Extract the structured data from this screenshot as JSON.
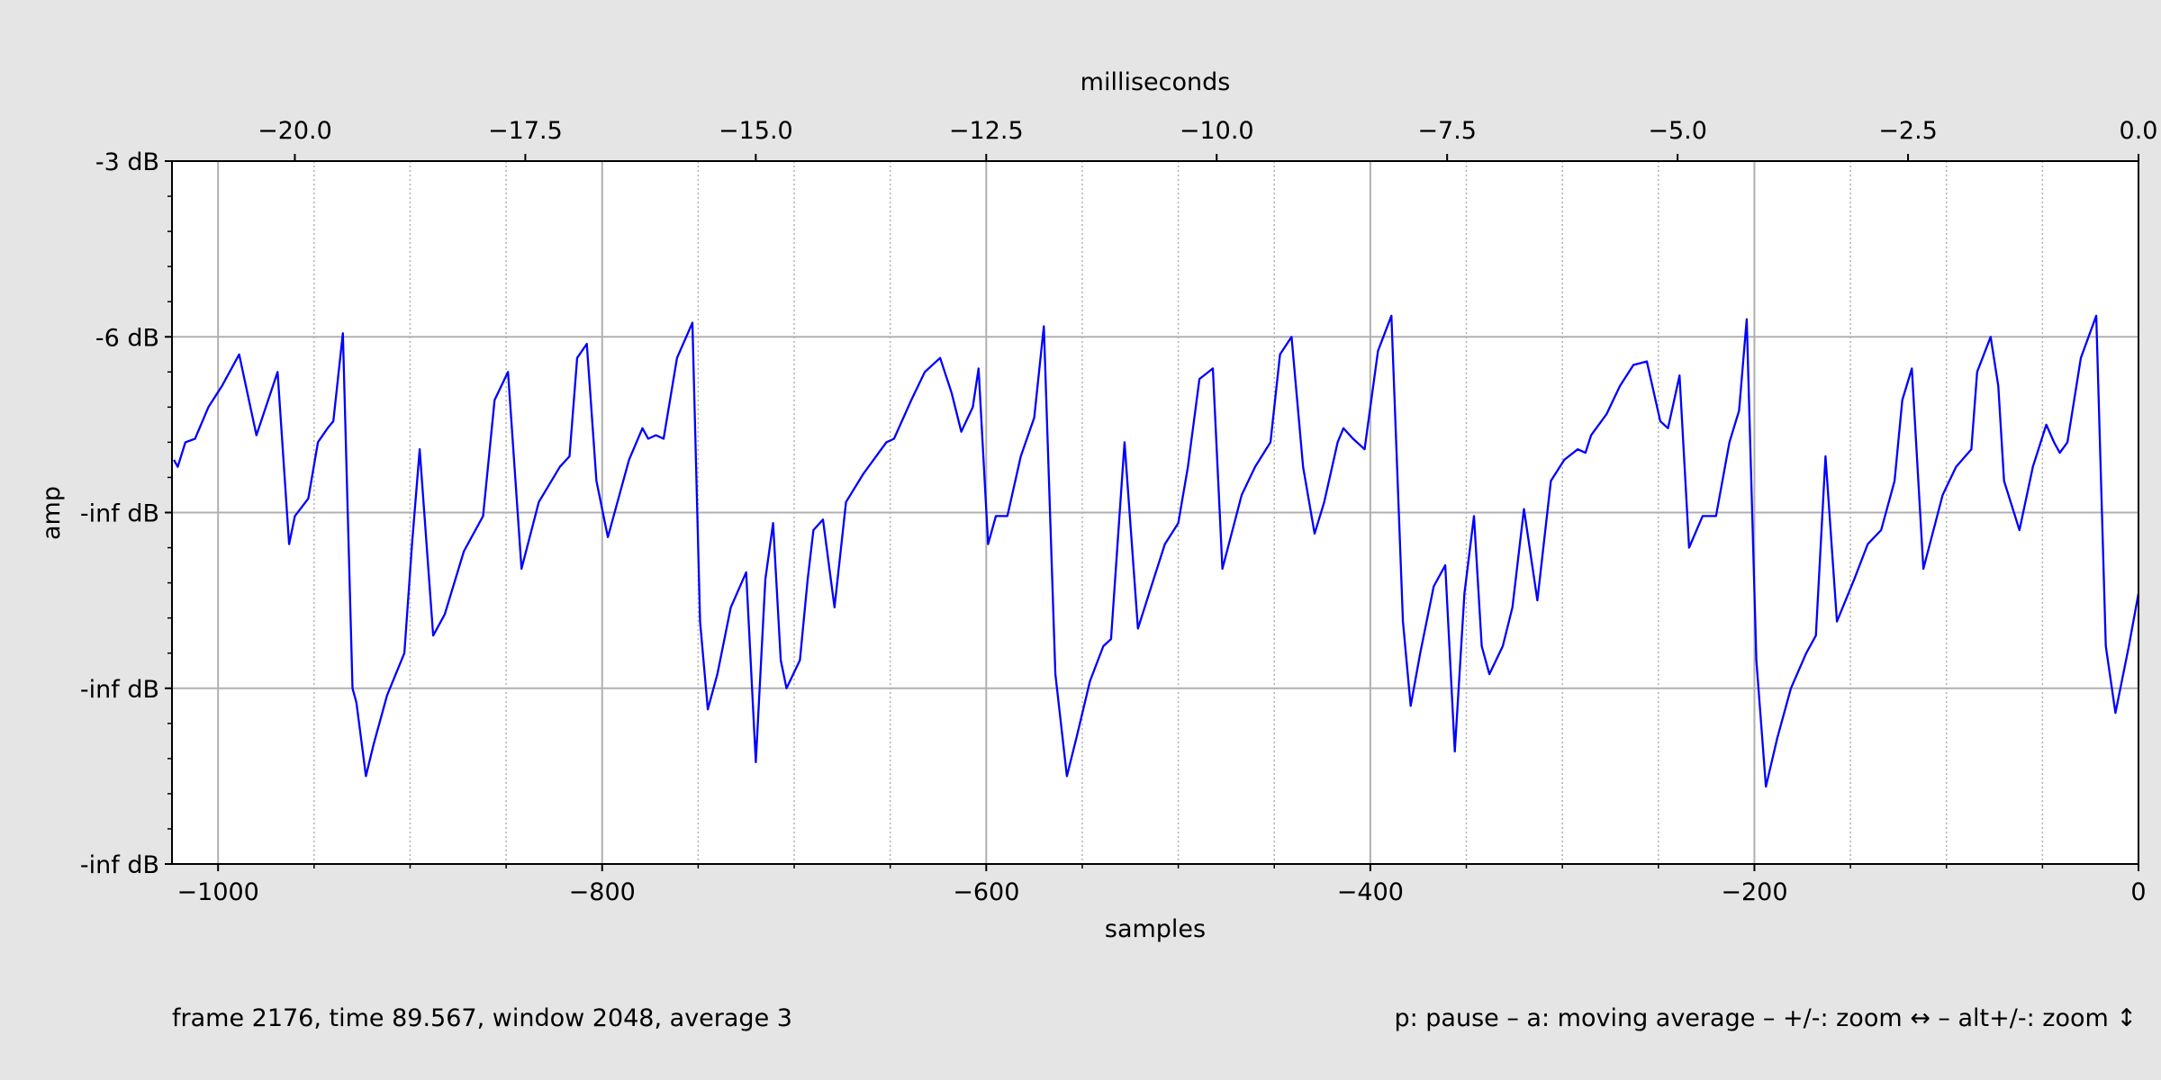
{
  "chart_data": {
    "type": "line",
    "x_label": "samples",
    "x2_label": "milliseconds",
    "y_label": "amp",
    "status_left": "frame 2176, time 89.567, window 2048, average 3",
    "status_right": "p: pause – a: moving average – +/-: zoom ↔  – alt+/-: zoom ↕",
    "color": "#0000ff",
    "grid": true,
    "xlim": [
      -1024,
      0
    ],
    "xticks": [
      {
        "value": -1000,
        "label": "−1000"
      },
      {
        "value": -800,
        "label": "−800"
      },
      {
        "value": -600,
        "label": "−600"
      },
      {
        "value": -400,
        "label": "−400"
      },
      {
        "value": -200,
        "label": "−200"
      },
      0
    ],
    "xminorticks": [
      -950,
      -900,
      -850,
      -750,
      -700,
      -650,
      -550,
      -500,
      -450,
      -350,
      -300,
      -250,
      -150,
      -100,
      -50
    ],
    "x2lim": [
      -21.333,
      0
    ],
    "x2ticks": [
      {
        "value": -20,
        "label": "−20.0"
      },
      {
        "value": -17.5,
        "label": "−17.5"
      },
      {
        "value": -15,
        "label": "−15.0"
      },
      {
        "value": -12.5,
        "label": "−12.5"
      },
      {
        "value": -10,
        "label": "−10.0"
      },
      {
        "value": -7.5,
        "label": "−7.5"
      },
      {
        "value": -5,
        "label": "−5.0"
      },
      {
        "value": -2.5,
        "label": "−2.5"
      },
      {
        "value": 0,
        "label": "0.0"
      }
    ],
    "ylim": [
      -1,
      1
    ],
    "yticks": [
      {
        "value": 1,
        "label": "-3 dB"
      },
      {
        "value": 0.5,
        "label": "-6 dB"
      },
      {
        "value": 0,
        "label": "-inf dB"
      },
      {
        "value": -0.5,
        "label": "-inf dB"
      },
      {
        "value": -1,
        "label": "-inf dB"
      }
    ],
    "yminorticks": [
      0.9,
      0.8,
      0.7,
      0.6,
      0.4,
      0.3,
      0.2,
      0.1,
      -0.1,
      -0.2,
      -0.3,
      -0.4,
      -0.6,
      -0.7,
      -0.8,
      -0.9
    ],
    "x": [
      -1023,
      -1021,
      -1017,
      -1012,
      -1005,
      -998,
      -989,
      -980,
      -969,
      -963,
      -960,
      -953,
      -948,
      -943,
      -940,
      -935,
      -930,
      -928,
      -923,
      -919,
      -912,
      -903,
      -899,
      -895,
      -888,
      -882,
      -872,
      -862,
      -856,
      -849,
      -842,
      -833,
      -822,
      -817,
      -813,
      -808,
      -803,
      -797,
      -791,
      -786,
      -779,
      -776,
      -772,
      -768,
      -761,
      -753,
      -749,
      -745,
      -740,
      -733,
      -725,
      -720,
      -715,
      -711,
      -707,
      -704,
      -697,
      -693,
      -690,
      -685,
      -679,
      -673,
      -664,
      -656,
      -652,
      -648,
      -639,
      -632,
      -624,
      -618,
      -613,
      -607,
      -604,
      -599,
      -595,
      -589,
      -582,
      -575,
      -570,
      -564,
      -558,
      -553,
      -546,
      -539,
      -535,
      -528,
      -521,
      -514,
      -507,
      -500,
      -495,
      -489,
      -482,
      -477,
      -467,
      -460,
      -452,
      -447,
      -441,
      -435,
      -429,
      -424,
      -417,
      -414,
      -409,
      -403,
      -396,
      -389,
      -383,
      -379,
      -374,
      -367,
      -361,
      -356,
      -351,
      -346,
      -342,
      -338,
      -331,
      -326,
      -320,
      -313,
      -306,
      -299,
      -292,
      -288,
      -285,
      -277,
      -270,
      -263,
      -256,
      -249,
      -245,
      -239,
      -234,
      -227,
      -220,
      -213,
      -208,
      -204,
      -199,
      -194,
      -188,
      -181,
      -173,
      -168,
      -163,
      -157,
      -148,
      -141,
      -134,
      -127,
      -123,
      -118,
      -112,
      -102,
      -95,
      -87,
      -84,
      -77,
      -73,
      -70,
      -62,
      -55,
      -48,
      -44,
      -41,
      -37,
      -30,
      -22,
      -17,
      -12,
      -5,
      0
    ],
    "values": [
      0.15,
      0.13,
      0.2,
      0.21,
      0.3,
      0.36,
      0.45,
      0.22,
      0.4,
      -0.09,
      -0.01,
      0.04,
      0.2,
      0.24,
      0.26,
      0.51,
      -0.5,
      -0.54,
      -0.75,
      -0.66,
      -0.52,
      -0.4,
      -0.09,
      0.18,
      -0.35,
      -0.29,
      -0.11,
      -0.01,
      0.32,
      0.4,
      -0.16,
      0.03,
      0.13,
      0.16,
      0.44,
      0.48,
      0.09,
      -0.07,
      0.05,
      0.15,
      0.24,
      0.21,
      0.22,
      0.21,
      0.44,
      0.54,
      -0.31,
      -0.56,
      -0.46,
      -0.27,
      -0.17,
      -0.71,
      -0.19,
      -0.03,
      -0.42,
      -0.5,
      -0.42,
      -0.19,
      -0.05,
      -0.02,
      -0.27,
      0.03,
      0.11,
      0.17,
      0.2,
      0.21,
      0.32,
      0.4,
      0.44,
      0.34,
      0.23,
      0.3,
      0.41,
      -0.09,
      -0.01,
      -0.01,
      0.16,
      0.27,
      0.53,
      -0.46,
      -0.75,
      -0.64,
      -0.48,
      -0.38,
      -0.36,
      0.2,
      -0.33,
      -0.21,
      -0.09,
      -0.03,
      0.13,
      0.38,
      0.41,
      -0.16,
      0.05,
      0.13,
      0.2,
      0.45,
      0.5,
      0.13,
      -0.06,
      0.03,
      0.2,
      0.24,
      0.21,
      0.18,
      0.46,
      0.56,
      -0.31,
      -0.55,
      -0.4,
      -0.21,
      -0.15,
      -0.68,
      -0.23,
      -0.01,
      -0.38,
      -0.46,
      -0.38,
      -0.27,
      0.01,
      -0.25,
      0.09,
      0.15,
      0.18,
      0.17,
      0.22,
      0.28,
      0.36,
      0.42,
      0.43,
      0.26,
      0.24,
      0.39,
      -0.1,
      -0.01,
      -0.01,
      0.2,
      0.29,
      0.55,
      -0.42,
      -0.78,
      -0.64,
      -0.5,
      -0.4,
      -0.35,
      0.16,
      -0.31,
      -0.19,
      -0.09,
      -0.05,
      0.09,
      0.32,
      0.41,
      -0.16,
      0.05,
      0.13,
      0.18,
      0.4,
      0.5,
      0.36,
      0.09,
      -0.05,
      0.13,
      0.25,
      0.2,
      0.17,
      0.2,
      0.44,
      0.56,
      -0.38,
      -0.57,
      -0.38,
      -0.23
    ]
  }
}
